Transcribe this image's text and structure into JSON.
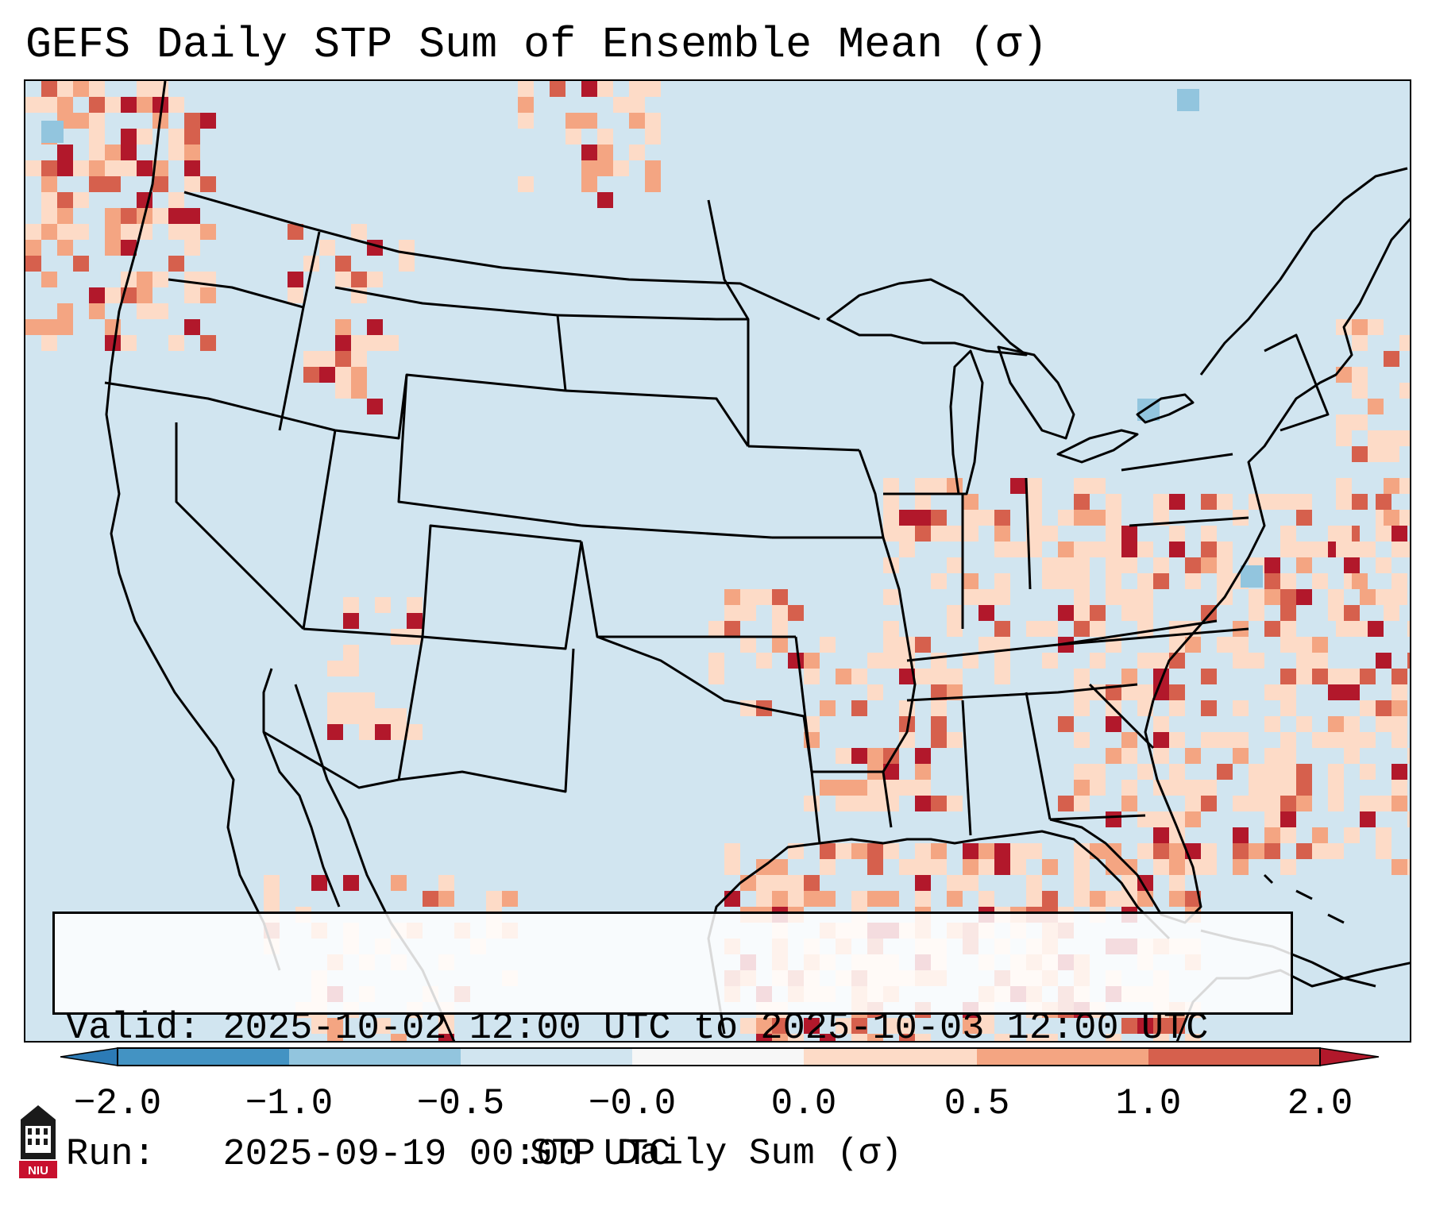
{
  "title": "GEFS Daily STP Sum of Ensemble Mean (σ)",
  "info": {
    "valid_label": "Valid:",
    "valid_value": "2025-10-02 12:00 UTC to 2025-10-03 12:00 UTC",
    "run_label": "Run:",
    "run_value": "2025-09-19 00:00 UTC"
  },
  "colorbar": {
    "label": "STP Daily Sum (σ)",
    "ticks": [
      "−2.0",
      "−1.0",
      "−0.5",
      "−0.0",
      "0.0",
      "0.5",
      "1.0",
      "2.0"
    ],
    "colors": {
      "under": "#2c7bb6",
      "b1": "#4393c3",
      "b2": "#92c5de",
      "b3": "#d1e5f0",
      "b4": "#f7f7f7",
      "b5": "#fddbc7",
      "b6": "#f4a582",
      "b7": "#d6604d",
      "over": "#b2182b"
    }
  },
  "map": {
    "background_color": "#d1e5f0",
    "anomaly_colors": {
      "light": "#fddbc7",
      "medium": "#f4a582",
      "strong": "#d6604d",
      "extreme": "#b2182b",
      "negative": "#92c5de"
    }
  },
  "logo": {
    "text": "NIU"
  }
}
